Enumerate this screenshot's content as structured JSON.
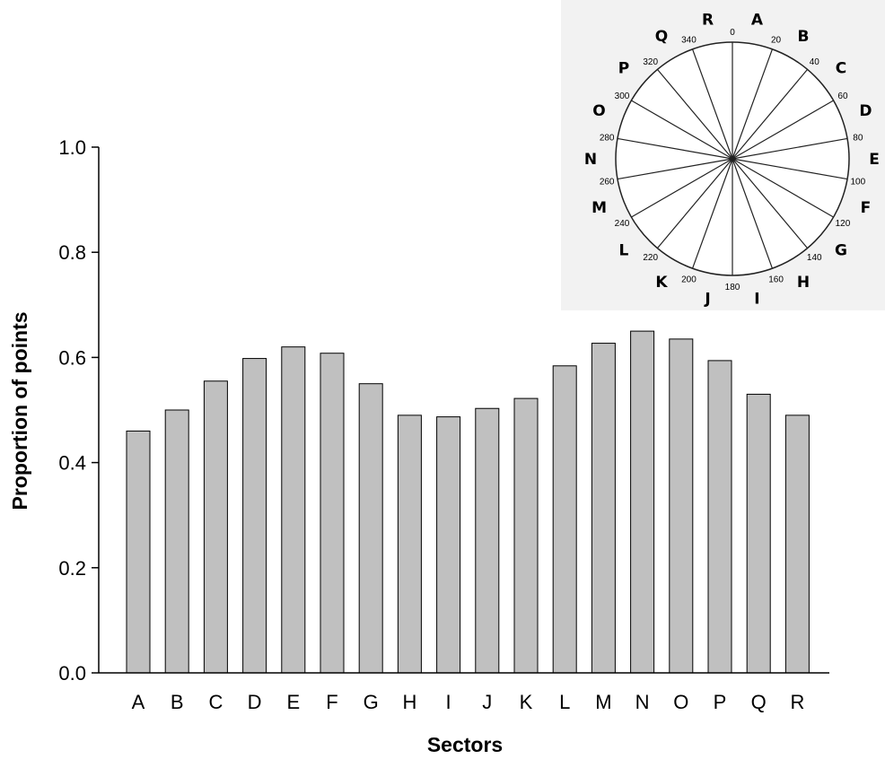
{
  "chart_data": {
    "type": "bar",
    "categories": [
      "A",
      "B",
      "C",
      "D",
      "E",
      "F",
      "G",
      "H",
      "I",
      "J",
      "K",
      "L",
      "M",
      "N",
      "O",
      "P",
      "Q",
      "R"
    ],
    "values": [
      0.46,
      0.5,
      0.555,
      0.598,
      0.62,
      0.608,
      0.55,
      0.49,
      0.487,
      0.503,
      0.522,
      0.584,
      0.627,
      0.65,
      0.635,
      0.594,
      0.53,
      0.49
    ],
    "xlabel": "Sectors",
    "ylabel": "Proportion of points",
    "ylim": [
      0,
      1.0
    ],
    "yticks": [
      "0.0",
      "0.2",
      "0.4",
      "0.6",
      "0.8",
      "1.0"
    ],
    "bar_color": "#c0c0c0",
    "grid": false
  },
  "inset": {
    "sector_letters": [
      "A",
      "B",
      "C",
      "D",
      "E",
      "F",
      "G",
      "H",
      "I",
      "J",
      "K",
      "L",
      "M",
      "N",
      "O",
      "P",
      "Q",
      "R"
    ],
    "degree_labels": [
      "0",
      "20",
      "40",
      "60",
      "80",
      "100",
      "120",
      "140",
      "160",
      "180",
      "200",
      "220",
      "240",
      "260",
      "280",
      "300",
      "320",
      "340"
    ]
  }
}
